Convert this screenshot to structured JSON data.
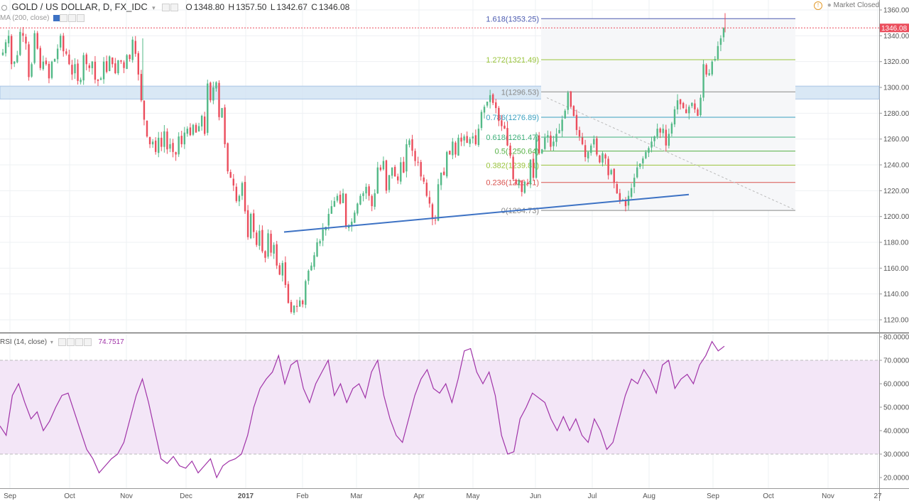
{
  "header": {
    "symbol": "GOLD / US DOLLAR, D, FX_IDC",
    "open_label": "O",
    "open": "1348.80",
    "high_label": "H",
    "high": "1357.50",
    "low_label": "L",
    "low": "1342.67",
    "close_label": "C",
    "close": "1346.08",
    "market_status": "Market Closed",
    "ma_label": "MA (200, close)"
  },
  "rsi_header": {
    "label": "RSI (14, close)",
    "value": "74.7517"
  },
  "colors": {
    "up": "#53b987",
    "down": "#eb4d5c",
    "rsi": "#a033a8",
    "rsi_band": "#f3e6f7",
    "trendline": "#3d72c4",
    "resistance_zone": "#cfe2f3"
  },
  "chart_data": [
    {
      "type": "candlestick",
      "title": "GOLD / US DOLLAR, D, FX_IDC",
      "ylim": [
        1110,
        1365
      ],
      "y_ticks": [
        "1120.00",
        "1140.00",
        "1160.00",
        "1180.00",
        "1200.00",
        "1220.00",
        "1240.00",
        "1260.00",
        "1280.00",
        "1300.00",
        "1320.00",
        "1340.00",
        "1360.00"
      ],
      "x_ticks": [
        "Sep",
        "Oct",
        "Nov",
        "Dec",
        "2017",
        "Feb",
        "Mar",
        "Apr",
        "May",
        "Jun",
        "Jul",
        "Aug",
        "Sep",
        "Oct",
        "Nov",
        "27"
      ],
      "last_price": "1346.08",
      "anchor_closes": [
        1327,
        1335,
        1340,
        1318,
        1320,
        1325,
        1343,
        1340,
        1334,
        1308,
        1318,
        1342,
        1330,
        1315,
        1320,
        1318,
        1307,
        1320,
        1322,
        1330,
        1340,
        1328,
        1326,
        1318,
        1310,
        1318,
        1305,
        1306,
        1325,
        1318,
        1315,
        1320,
        1306,
        1305,
        1307,
        1320,
        1312,
        1324,
        1318,
        1311,
        1321,
        1320,
        1315,
        1325,
        1322,
        1337,
        1326,
        1310,
        1290,
        1275,
        1262,
        1256,
        1258,
        1250,
        1261,
        1254,
        1266,
        1252,
        1256,
        1250,
        1248,
        1262,
        1256,
        1265,
        1268,
        1263,
        1271,
        1265,
        1270,
        1278,
        1264,
        1303,
        1290,
        1300,
        1304,
        1277,
        1284,
        1256,
        1235,
        1230,
        1224,
        1212,
        1216,
        1226,
        1204,
        1184,
        1202,
        1188,
        1178,
        1189,
        1173,
        1168,
        1187,
        1172,
        1178,
        1162,
        1155,
        1164,
        1147,
        1133,
        1126,
        1131,
        1130,
        1135,
        1132,
        1150,
        1158,
        1162,
        1170,
        1180,
        1181,
        1190,
        1192,
        1202,
        1208,
        1212,
        1216,
        1210,
        1218,
        1192,
        1193,
        1196,
        1203,
        1210,
        1216,
        1218,
        1223,
        1216,
        1208,
        1218,
        1238,
        1236,
        1243,
        1220,
        1232,
        1238,
        1231,
        1228,
        1242,
        1234,
        1256,
        1259,
        1251,
        1243,
        1242,
        1231,
        1227,
        1216,
        1210,
        1198,
        1197,
        1225,
        1234,
        1232,
        1250,
        1248,
        1258,
        1248,
        1261,
        1258,
        1262,
        1257,
        1260,
        1262,
        1256,
        1268,
        1281,
        1285,
        1289,
        1294,
        1288,
        1284,
        1274,
        1270,
        1268,
        1255,
        1247,
        1229,
        1225,
        1228,
        1219,
        1227,
        1225,
        1244,
        1230,
        1262,
        1249,
        1252,
        1261,
        1263,
        1254,
        1258,
        1264,
        1267,
        1275,
        1282,
        1296,
        1285,
        1278,
        1267,
        1262,
        1256,
        1246,
        1250,
        1255,
        1260,
        1248,
        1242,
        1249,
        1245,
        1232,
        1236,
        1226,
        1218,
        1212,
        1213,
        1208,
        1216,
        1222,
        1230,
        1238,
        1241,
        1245,
        1250,
        1253,
        1258,
        1262,
        1268,
        1265,
        1268,
        1255,
        1264,
        1272,
        1283,
        1290,
        1287,
        1284,
        1280,
        1285,
        1288,
        1283,
        1278,
        1292,
        1318,
        1310,
        1311,
        1320,
        1322,
        1332,
        1338,
        1346
      ]
    },
    {
      "type": "line",
      "title": "RSI (14, close)",
      "ylim": [
        15,
        82
      ],
      "y_ticks": [
        "20.0000",
        "30.0000",
        "40.0000",
        "50.0000",
        "60.0000",
        "70.0000",
        "80.0000"
      ],
      "bands": [
        30,
        70
      ],
      "last_value": 74.7517,
      "anchor_values": [
        42,
        38,
        55,
        60,
        52,
        45,
        48,
        40,
        44,
        50,
        55,
        56,
        48,
        40,
        32,
        28,
        22,
        25,
        28,
        30,
        35,
        45,
        55,
        62,
        52,
        40,
        28,
        26,
        29,
        25,
        24,
        27,
        22,
        25,
        28,
        20,
        25,
        27,
        28,
        30,
        38,
        50,
        58,
        62,
        65,
        72,
        60,
        68,
        70,
        58,
        52,
        60,
        65,
        70,
        55,
        60,
        52,
        58,
        60,
        54,
        65,
        70,
        55,
        45,
        38,
        35,
        45,
        55,
        62,
        66,
        58,
        56,
        60,
        52,
        62,
        74,
        75,
        65,
        60,
        65,
        55,
        38,
        30,
        31,
        45,
        50,
        56,
        54,
        52,
        45,
        40,
        46,
        40,
        45,
        38,
        35,
        45,
        40,
        32,
        35,
        45,
        55,
        62,
        60,
        66,
        62,
        56,
        68,
        70,
        58,
        62,
        64,
        60,
        68,
        72,
        78,
        74,
        76
      ]
    }
  ],
  "fibonacci": {
    "levels": [
      {
        "label": "1.618(1353.25)",
        "price": 1353.25,
        "color": "#4a5ab0"
      },
      {
        "label": "1.272(1321.49)",
        "price": 1321.49,
        "color": "#9ac43b"
      },
      {
        "label": "1(1296.53)",
        "price": 1296.53,
        "color": "#888888"
      },
      {
        "label": "0.786(1276.89)",
        "price": 1276.89,
        "color": "#3aa0c0"
      },
      {
        "label": "0.618(1261.47)",
        "price": 1261.47,
        "color": "#3fb07a"
      },
      {
        "label": "0.5(1250.64)",
        "price": 1250.64,
        "color": "#55b044"
      },
      {
        "label": "0.382(1239.81)",
        "price": 1239.81,
        "color": "#9ac43b"
      },
      {
        "label": "0.236(1226.41)",
        "price": 1226.41,
        "color": "#d9534f"
      },
      {
        "label": "0(1204.73)",
        "price": 1204.73,
        "color": "#888888"
      }
    ]
  }
}
